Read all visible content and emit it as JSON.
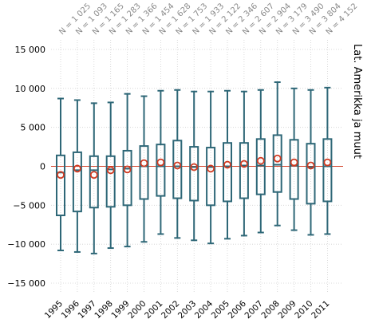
{
  "chart_data": {
    "type": "box",
    "title": "",
    "xlabel": "",
    "ylabel": "",
    "right_label": "Lat. Amerikka ja muut",
    "ylim": [
      -16000,
      16500
    ],
    "yticks": [
      15000,
      10000,
      5000,
      0,
      -5000,
      -10000,
      -15000
    ],
    "ytick_labels": [
      "15 000",
      "10 000",
      "5 000",
      "0",
      "−5 000",
      "−10 000",
      "−15 000"
    ],
    "grid": true,
    "categories": [
      "1995",
      "1996",
      "1997",
      "1998",
      "1999",
      "2000",
      "2001",
      "2002",
      "2003",
      "2004",
      "2005",
      "2006",
      "2007",
      "2008",
      "2009",
      "2010",
      "2011"
    ],
    "n_labels": [
      "N = 1 025",
      "N = 1 093",
      "N = 1 165",
      "N = 1 283",
      "N = 1 366",
      "N = 1 454",
      "N = 1 628",
      "N = 1 753",
      "N = 1 933",
      "N = 2 122",
      "N = 2 346",
      "N = 2 607",
      "N = 2 904",
      "N = 3 179",
      "N = 3 490",
      "N = 3 804",
      "N = 4 152"
    ],
    "whisker_low": [
      -10800,
      -11000,
      -11200,
      -10500,
      -10300,
      -9700,
      -8700,
      -9200,
      -9500,
      -9900,
      -9300,
      -8900,
      -8500,
      -7600,
      -8200,
      -8800,
      -8700
    ],
    "q1": [
      -6300,
      -5800,
      -5300,
      -5200,
      -5000,
      -4200,
      -3800,
      -4100,
      -4400,
      -5000,
      -4500,
      -4100,
      -3600,
      -3300,
      -4200,
      -4800,
      -4500
    ],
    "median": [
      -800,
      -500,
      -500,
      -400,
      -300,
      0,
      0,
      0,
      -100,
      -100,
      0,
      100,
      100,
      200,
      100,
      -100,
      0
    ],
    "q3": [
      1400,
      1800,
      1300,
      1300,
      2000,
      2600,
      2800,
      3300,
      2500,
      2400,
      3000,
      3000,
      3500,
      4000,
      3400,
      2900,
      3500
    ],
    "whisker_high": [
      8700,
      8500,
      8100,
      8200,
      9300,
      9000,
      9700,
      9800,
      9600,
      9600,
      9700,
      9600,
      9800,
      10800,
      10000,
      9800,
      10100
    ],
    "mean": [
      -1100,
      -300,
      -1100,
      -500,
      -400,
      400,
      500,
      100,
      -100,
      -300,
      200,
      300,
      700,
      1000,
      500,
      100,
      500
    ],
    "colors": {
      "box": "#2e6777",
      "mean_marker": "#d13b22",
      "zero_line": "#d13b22",
      "grid": "#d0d0d0",
      "text": "#000000",
      "n_text": "#8a8a8a"
    }
  }
}
